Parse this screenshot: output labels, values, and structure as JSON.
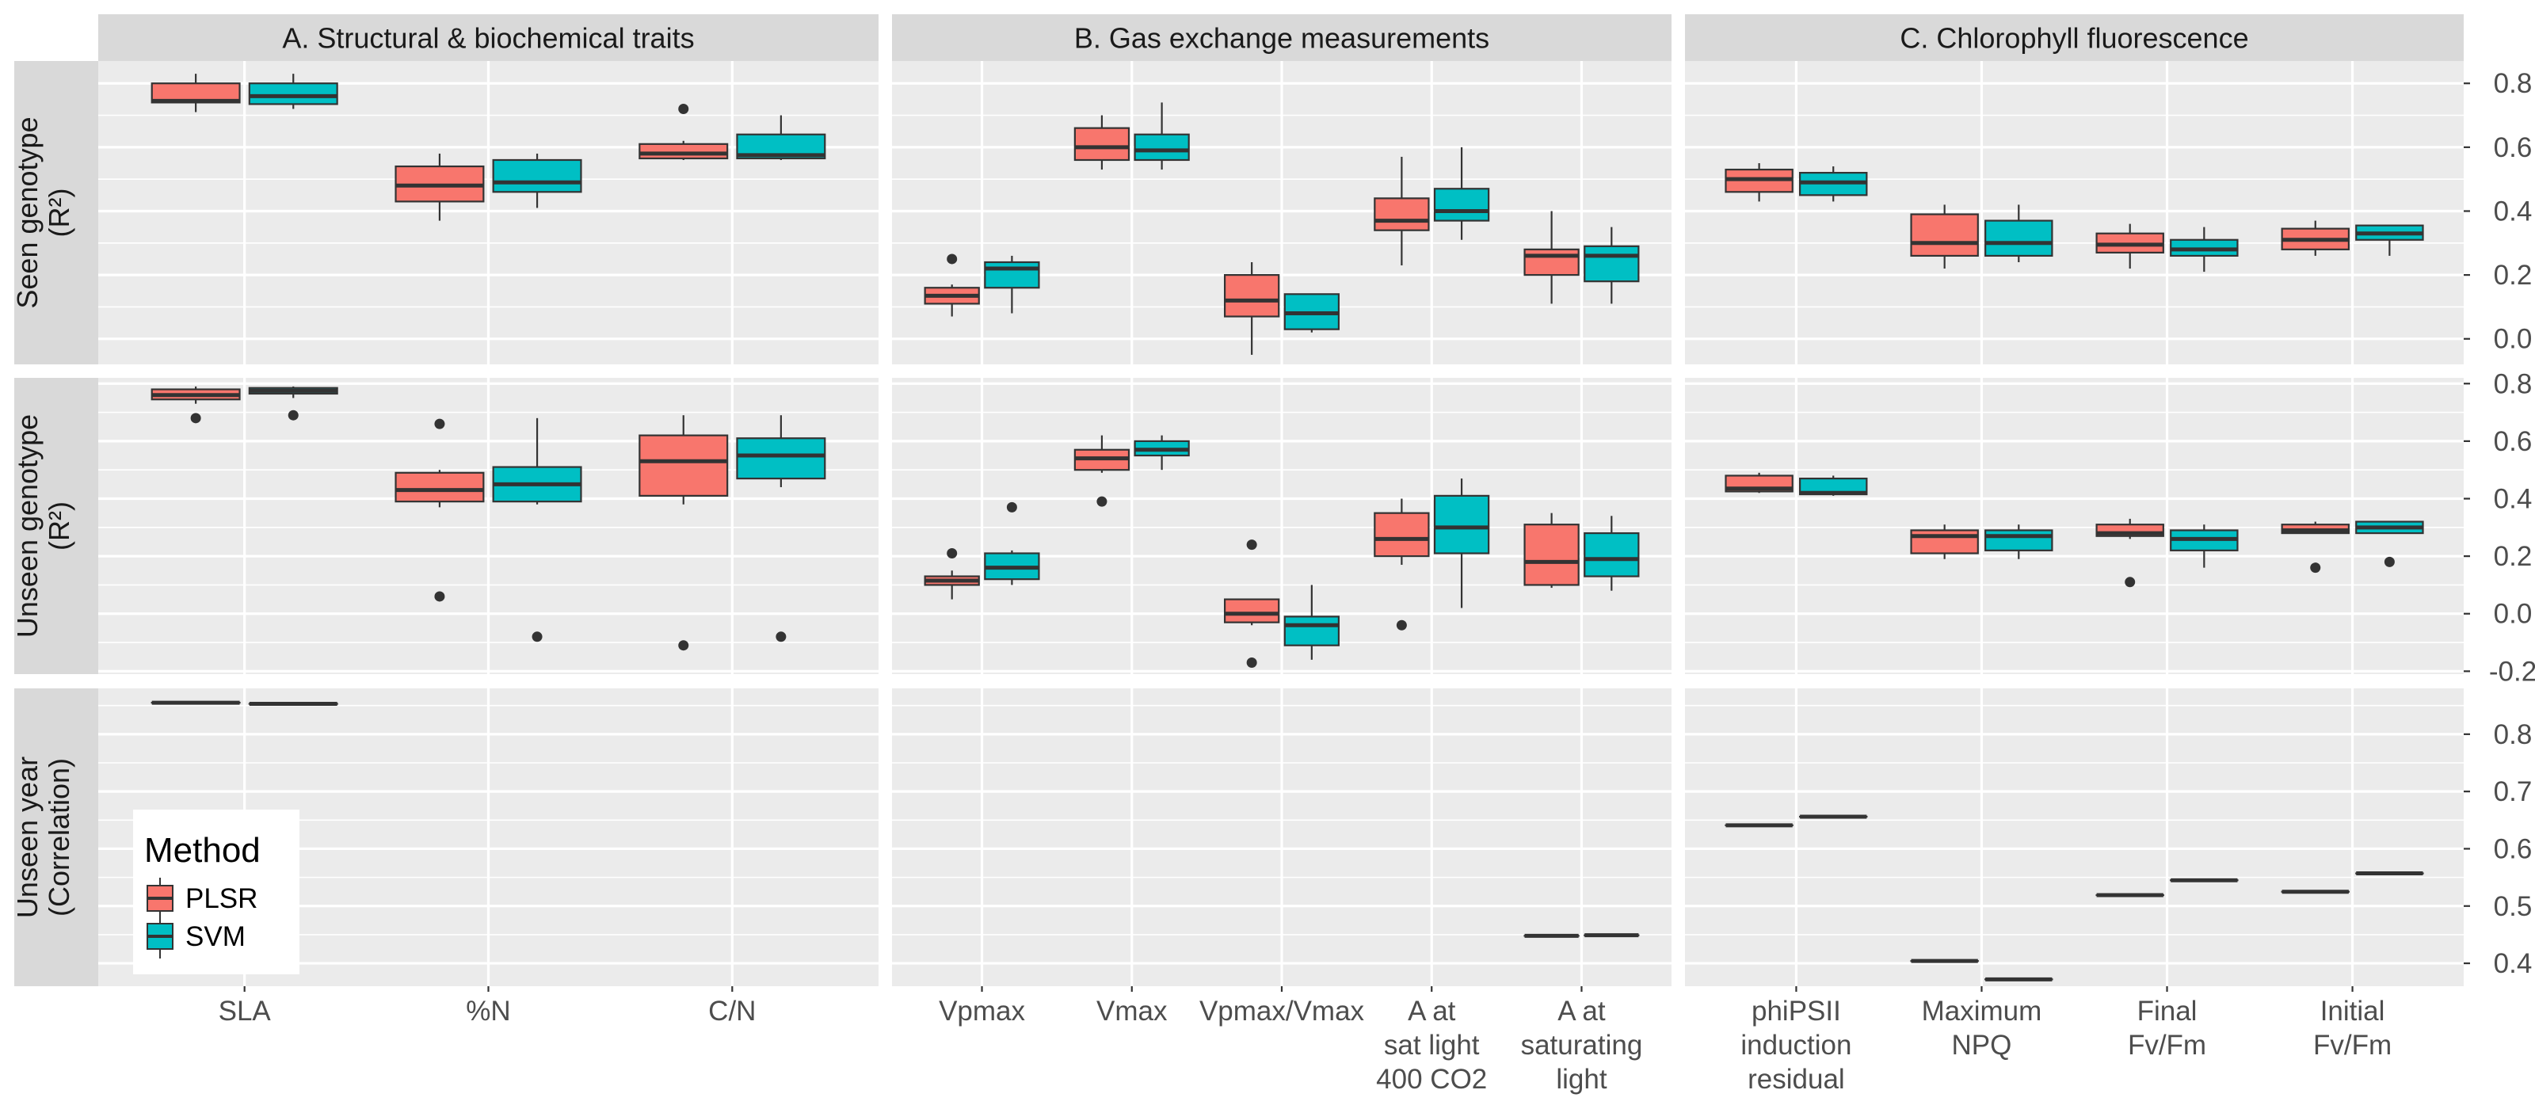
{
  "colors": {
    "PLSR": "#F8766D",
    "SVM": "#00BFC4"
  },
  "legend": {
    "title": "Method",
    "items": [
      {
        "name": "PLSR",
        "label": "PLSR",
        "color": "#F8766D"
      },
      {
        "name": "SVM",
        "label": "SVM",
        "color": "#00BFC4"
      }
    ]
  },
  "chart_data": {
    "type": "box",
    "facet_columns": [
      {
        "title": "A. Structural & biochemical traits",
        "categories": [
          [
            "SLA"
          ],
          [
            "%N"
          ],
          [
            "C/N"
          ]
        ]
      },
      {
        "title": "B. Gas exchange measurements",
        "categories": [
          [
            "Vpmax"
          ],
          [
            "Vmax"
          ],
          [
            "Vpmax/Vmax"
          ],
          [
            "A at",
            "sat light",
            "400 CO2"
          ],
          [
            "A at",
            "saturating",
            "light"
          ]
        ]
      },
      {
        "title": "C. Chlorophyll fluorescence",
        "categories": [
          [
            "phiPSII",
            "induction",
            "residual"
          ],
          [
            "Maximum",
            "NPQ"
          ],
          [
            "Final",
            "Fv/Fm"
          ],
          [
            "Initial",
            "Fv/Fm"
          ]
        ]
      }
    ],
    "facet_rows": [
      {
        "label": [
          "Seen genotype",
          "(R²)"
        ],
        "ylim": [
          -0.08,
          0.87
        ],
        "yticks": [
          0.0,
          0.2,
          0.4,
          0.6,
          0.8
        ],
        "ytick_labels": [
          "0.0",
          "0.2",
          "0.4",
          "0.6",
          "0.8"
        ],
        "columns": [
          [
            {
              "PLSR": {
                "min": 0.71,
                "q1": 0.74,
                "median": 0.745,
                "q3": 0.8,
                "max": 0.83,
                "outliers": []
              },
              "SVM": {
                "min": 0.72,
                "q1": 0.735,
                "median": 0.76,
                "q3": 0.8,
                "max": 0.83,
                "outliers": []
              }
            },
            {
              "PLSR": {
                "min": 0.37,
                "q1": 0.43,
                "median": 0.48,
                "q3": 0.54,
                "max": 0.58,
                "outliers": []
              },
              "SVM": {
                "min": 0.41,
                "q1": 0.46,
                "median": 0.49,
                "q3": 0.56,
                "max": 0.58,
                "outliers": []
              }
            },
            {
              "PLSR": {
                "min": 0.56,
                "q1": 0.565,
                "median": 0.58,
                "q3": 0.61,
                "max": 0.62,
                "outliers": [
                  0.72
                ]
              },
              "SVM": {
                "min": 0.56,
                "q1": 0.565,
                "median": 0.575,
                "q3": 0.64,
                "max": 0.7,
                "outliers": []
              }
            }
          ],
          [
            {
              "PLSR": {
                "min": 0.07,
                "q1": 0.11,
                "median": 0.135,
                "q3": 0.16,
                "max": 0.17,
                "outliers": [
                  0.25
                ]
              },
              "SVM": {
                "min": 0.08,
                "q1": 0.16,
                "median": 0.22,
                "q3": 0.24,
                "max": 0.26,
                "outliers": []
              }
            },
            {
              "PLSR": {
                "min": 0.53,
                "q1": 0.56,
                "median": 0.6,
                "q3": 0.66,
                "max": 0.7,
                "outliers": []
              },
              "SVM": {
                "min": 0.53,
                "q1": 0.56,
                "median": 0.59,
                "q3": 0.64,
                "max": 0.74,
                "outliers": []
              }
            },
            {
              "PLSR": {
                "min": -0.05,
                "q1": 0.07,
                "median": 0.12,
                "q3": 0.2,
                "max": 0.24,
                "outliers": []
              },
              "SVM": {
                "min": 0.02,
                "q1": 0.03,
                "median": 0.08,
                "q3": 0.14,
                "max": 0.14,
                "outliers": []
              }
            },
            {
              "PLSR": {
                "min": 0.23,
                "q1": 0.34,
                "median": 0.37,
                "q3": 0.44,
                "max": 0.57,
                "outliers": []
              },
              "SVM": {
                "min": 0.31,
                "q1": 0.37,
                "median": 0.4,
                "q3": 0.47,
                "max": 0.6,
                "outliers": []
              }
            },
            {
              "PLSR": {
                "min": 0.11,
                "q1": 0.2,
                "median": 0.26,
                "q3": 0.28,
                "max": 0.4,
                "outliers": []
              },
              "SVM": {
                "min": 0.11,
                "q1": 0.18,
                "median": 0.26,
                "q3": 0.29,
                "max": 0.35,
                "outliers": []
              }
            }
          ],
          [
            {
              "PLSR": {
                "min": 0.43,
                "q1": 0.46,
                "median": 0.5,
                "q3": 0.53,
                "max": 0.55,
                "outliers": []
              },
              "SVM": {
                "min": 0.43,
                "q1": 0.45,
                "median": 0.49,
                "q3": 0.52,
                "max": 0.54,
                "outliers": []
              }
            },
            {
              "PLSR": {
                "min": 0.22,
                "q1": 0.26,
                "median": 0.3,
                "q3": 0.39,
                "max": 0.42,
                "outliers": []
              },
              "SVM": {
                "min": 0.24,
                "q1": 0.26,
                "median": 0.3,
                "q3": 0.37,
                "max": 0.42,
                "outliers": []
              }
            },
            {
              "PLSR": {
                "min": 0.22,
                "q1": 0.27,
                "median": 0.295,
                "q3": 0.33,
                "max": 0.36,
                "outliers": []
              },
              "SVM": {
                "min": 0.21,
                "q1": 0.26,
                "median": 0.28,
                "q3": 0.31,
                "max": 0.35,
                "outliers": []
              }
            },
            {
              "PLSR": {
                "min": 0.26,
                "q1": 0.28,
                "median": 0.31,
                "q3": 0.345,
                "max": 0.37,
                "outliers": []
              },
              "SVM": {
                "min": 0.26,
                "q1": 0.31,
                "median": 0.33,
                "q3": 0.355,
                "max": 0.355,
                "outliers": []
              }
            }
          ]
        ]
      },
      {
        "label": [
          "Unseen genotype",
          "(R²)"
        ],
        "ylim": [
          -0.21,
          0.82
        ],
        "yticks": [
          -0.2,
          0.0,
          0.2,
          0.4,
          0.6,
          0.8
        ],
        "ytick_labels": [
          "-0.2",
          "0.0",
          "0.2",
          "0.4",
          "0.6",
          "0.8"
        ],
        "columns": [
          [
            {
              "PLSR": {
                "min": 0.73,
                "q1": 0.745,
                "median": 0.76,
                "q3": 0.78,
                "max": 0.79,
                "outliers": [
                  0.68
                ]
              },
              "SVM": {
                "min": 0.75,
                "q1": 0.765,
                "median": 0.775,
                "q3": 0.785,
                "max": 0.79,
                "outliers": [
                  0.69
                ]
              }
            },
            {
              "PLSR": {
                "min": 0.37,
                "q1": 0.39,
                "median": 0.43,
                "q3": 0.49,
                "max": 0.5,
                "outliers": [
                  0.66,
                  0.06
                ]
              },
              "SVM": {
                "min": 0.38,
                "q1": 0.39,
                "median": 0.45,
                "q3": 0.51,
                "max": 0.68,
                "outliers": [
                  -0.08
                ]
              }
            },
            {
              "PLSR": {
                "min": 0.38,
                "q1": 0.41,
                "median": 0.53,
                "q3": 0.62,
                "max": 0.69,
                "outliers": [
                  -0.11
                ]
              },
              "SVM": {
                "min": 0.44,
                "q1": 0.47,
                "median": 0.55,
                "q3": 0.61,
                "max": 0.69,
                "outliers": [
                  -0.08
                ]
              }
            }
          ],
          [
            {
              "PLSR": {
                "min": 0.05,
                "q1": 0.1,
                "median": 0.115,
                "q3": 0.13,
                "max": 0.15,
                "outliers": [
                  0.21
                ]
              },
              "SVM": {
                "min": 0.1,
                "q1": 0.12,
                "median": 0.16,
                "q3": 0.21,
                "max": 0.22,
                "outliers": [
                  0.37
                ]
              }
            },
            {
              "PLSR": {
                "min": 0.49,
                "q1": 0.5,
                "median": 0.54,
                "q3": 0.57,
                "max": 0.62,
                "outliers": [
                  0.39
                ]
              },
              "SVM": {
                "min": 0.5,
                "q1": 0.55,
                "median": 0.57,
                "q3": 0.6,
                "max": 0.62,
                "outliers": []
              }
            },
            {
              "PLSR": {
                "min": -0.04,
                "q1": -0.03,
                "median": 0.0,
                "q3": 0.05,
                "max": 0.05,
                "outliers": [
                  0.24,
                  -0.17
                ]
              },
              "SVM": {
                "min": -0.16,
                "q1": -0.11,
                "median": -0.04,
                "q3": -0.01,
                "max": 0.1,
                "outliers": []
              }
            },
            {
              "PLSR": {
                "min": 0.17,
                "q1": 0.2,
                "median": 0.26,
                "q3": 0.35,
                "max": 0.4,
                "outliers": [
                  -0.04
                ]
              },
              "SVM": {
                "min": 0.02,
                "q1": 0.21,
                "median": 0.3,
                "q3": 0.41,
                "max": 0.47,
                "outliers": []
              }
            },
            {
              "PLSR": {
                "min": 0.09,
                "q1": 0.1,
                "median": 0.18,
                "q3": 0.31,
                "max": 0.35,
                "outliers": []
              },
              "SVM": {
                "min": 0.08,
                "q1": 0.13,
                "median": 0.19,
                "q3": 0.28,
                "max": 0.34,
                "outliers": []
              }
            }
          ],
          [
            {
              "PLSR": {
                "min": 0.42,
                "q1": 0.425,
                "median": 0.435,
                "q3": 0.48,
                "max": 0.49,
                "outliers": []
              },
              "SVM": {
                "min": 0.41,
                "q1": 0.415,
                "median": 0.42,
                "q3": 0.47,
                "max": 0.48,
                "outliers": []
              }
            },
            {
              "PLSR": {
                "min": 0.19,
                "q1": 0.21,
                "median": 0.27,
                "q3": 0.29,
                "max": 0.31,
                "outliers": []
              },
              "SVM": {
                "min": 0.19,
                "q1": 0.22,
                "median": 0.27,
                "q3": 0.29,
                "max": 0.31,
                "outliers": []
              }
            },
            {
              "PLSR": {
                "min": 0.26,
                "q1": 0.27,
                "median": 0.28,
                "q3": 0.31,
                "max": 0.33,
                "outliers": [
                  0.11
                ]
              },
              "SVM": {
                "min": 0.16,
                "q1": 0.22,
                "median": 0.26,
                "q3": 0.29,
                "max": 0.31,
                "outliers": []
              }
            },
            {
              "PLSR": {
                "min": 0.28,
                "q1": 0.28,
                "median": 0.29,
                "q3": 0.31,
                "max": 0.32,
                "outliers": [
                  0.16
                ]
              },
              "SVM": {
                "min": 0.28,
                "q1": 0.28,
                "median": 0.3,
                "q3": 0.32,
                "max": 0.32,
                "outliers": [
                  0.18
                ]
              }
            }
          ]
        ]
      },
      {
        "label": [
          "Unseen year",
          "(Correlation)"
        ],
        "ylim": [
          0.36,
          0.88
        ],
        "yticks": [
          0.4,
          0.5,
          0.6,
          0.7,
          0.8
        ],
        "ytick_labels": [
          "0.4",
          "0.5",
          "0.6",
          "0.7",
          "0.8"
        ],
        "columns": [
          [
            {
              "PLSR": {
                "min": 0.855,
                "q1": 0.855,
                "median": 0.855,
                "q3": 0.855,
                "max": 0.855,
                "outliers": []
              },
              "SVM": {
                "min": 0.853,
                "q1": 0.853,
                "median": 0.853,
                "q3": 0.853,
                "max": 0.853,
                "outliers": []
              }
            },
            null,
            null
          ],
          [
            null,
            null,
            null,
            null,
            {
              "PLSR": {
                "min": 0.448,
                "q1": 0.448,
                "median": 0.448,
                "q3": 0.448,
                "max": 0.448,
                "outliers": []
              },
              "SVM": {
                "min": 0.449,
                "q1": 0.449,
                "median": 0.449,
                "q3": 0.449,
                "max": 0.449,
                "outliers": []
              }
            }
          ],
          [
            {
              "PLSR": {
                "min": 0.641,
                "q1": 0.641,
                "median": 0.641,
                "q3": 0.641,
                "max": 0.641,
                "outliers": []
              },
              "SVM": {
                "min": 0.656,
                "q1": 0.656,
                "median": 0.656,
                "q3": 0.656,
                "max": 0.656,
                "outliers": []
              }
            },
            {
              "PLSR": {
                "min": 0.404,
                "q1": 0.404,
                "median": 0.404,
                "q3": 0.404,
                "max": 0.404,
                "outliers": []
              },
              "SVM": {
                "min": 0.372,
                "q1": 0.372,
                "median": 0.372,
                "q3": 0.372,
                "max": 0.372,
                "outliers": []
              }
            },
            {
              "PLSR": {
                "min": 0.519,
                "q1": 0.519,
                "median": 0.519,
                "q3": 0.519,
                "max": 0.519,
                "outliers": []
              },
              "SVM": {
                "min": 0.545,
                "q1": 0.545,
                "median": 0.545,
                "q3": 0.545,
                "max": 0.545,
                "outliers": []
              }
            },
            {
              "PLSR": {
                "min": 0.525,
                "q1": 0.525,
                "median": 0.525,
                "q3": 0.525,
                "max": 0.525,
                "outliers": []
              },
              "SVM": {
                "min": 0.557,
                "q1": 0.557,
                "median": 0.557,
                "q3": 0.557,
                "max": 0.557,
                "outliers": []
              }
            }
          ]
        ]
      }
    ]
  }
}
